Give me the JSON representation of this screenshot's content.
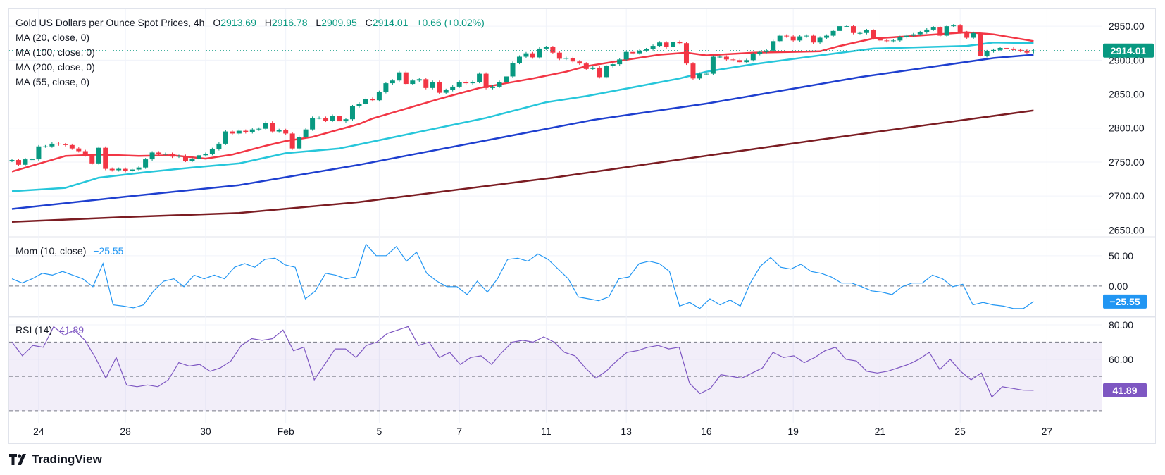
{
  "header": {
    "title": "Gold US Dollars per Ounce Spot Prices, 4h",
    "open_label": "O",
    "open": "2913.69",
    "high_label": "H",
    "high": "2916.78",
    "low_label": "L",
    "low": "2909.95",
    "close_label": "C",
    "close": "2914.01",
    "change": "+0.66 (+0.02%)"
  },
  "indicators": [
    "MA (20, close, 0)",
    "MA (100, close, 0)",
    "MA (200, close, 0)",
    "MA (55, close, 0)"
  ],
  "momentum": {
    "label": "Mom (10, close)",
    "value": "−25.55"
  },
  "rsi": {
    "label": "RSI (14)",
    "value": "41.89"
  },
  "current_price_label": "2914.01",
  "brand": "TradingView",
  "colors": {
    "up": "#089981",
    "down": "#f23645",
    "ma20": "#f23645",
    "ma55": "#26c6da",
    "ma100": "#1e3fcf",
    "ma200": "#7b1c22",
    "momentum": "#2196f3",
    "rsi": "#7e57c2"
  },
  "chart_data": [
    {
      "type": "candlestick",
      "pane": "price",
      "ylim": [
        2640,
        2975
      ],
      "yticks": [
        "2950.00",
        "2900.00",
        "2850.00",
        "2800.00",
        "2750.00",
        "2700.00",
        "2650.00"
      ],
      "ytick_values": [
        2950,
        2900,
        2850,
        2800,
        2750,
        2700,
        2650
      ],
      "xticks": [
        {
          "label": "24",
          "bar": 4
        },
        {
          "label": "28",
          "bar": 17
        },
        {
          "label": "30",
          "bar": 29
        },
        {
          "label": "Feb",
          "bar": 41
        },
        {
          "label": "5",
          "bar": 55
        },
        {
          "label": "7",
          "bar": 67
        },
        {
          "label": "11",
          "bar": 80
        },
        {
          "label": "13",
          "bar": 92
        },
        {
          "label": "16",
          "bar": 104
        },
        {
          "label": "19",
          "bar": 117
        },
        {
          "label": "21",
          "bar": 130
        },
        {
          "label": "25",
          "bar": 142
        },
        {
          "label": "27",
          "bar": 155
        }
      ],
      "first_open": 2752,
      "closes": [
        2753,
        2746,
        2754,
        2754,
        2773,
        2773,
        2777,
        2776,
        2775,
        2770,
        2766,
        2760,
        2748,
        2771,
        2740,
        2738,
        2740,
        2737,
        2739,
        2742,
        2754,
        2764,
        2762,
        2762,
        2758,
        2759,
        2752,
        2755,
        2760,
        2762,
        2769,
        2777,
        2795,
        2792,
        2796,
        2794,
        2798,
        2799,
        2808,
        2795,
        2797,
        2792,
        2770,
        2787,
        2798,
        2815,
        2815,
        2811,
        2818,
        2810,
        2813,
        2832,
        2836,
        2843,
        2841,
        2853,
        2866,
        2870,
        2882,
        2865,
        2870,
        2872,
        2859,
        2868,
        2852,
        2856,
        2861,
        2868,
        2866,
        2868,
        2880,
        2859,
        2861,
        2868,
        2876,
        2896,
        2905,
        2910,
        2904,
        2917,
        2919,
        2911,
        2902,
        2903,
        2898,
        2895,
        2887,
        2889,
        2875,
        2891,
        2894,
        2901,
        2912,
        2910,
        2914,
        2916,
        2921,
        2926,
        2919,
        2927,
        2925,
        2895,
        2873,
        2880,
        2880,
        2905,
        2905,
        2901,
        2900,
        2897,
        2900,
        2909,
        2912,
        2914,
        2928,
        2936,
        2935,
        2929,
        2935,
        2936,
        2926,
        2933,
        2936,
        2943,
        2950,
        2950,
        2940,
        2940,
        2944,
        2932,
        2929,
        2928,
        2929,
        2934,
        2936,
        2938,
        2941,
        2945,
        2948,
        2936,
        2950,
        2951,
        2941,
        2933,
        2940,
        2906,
        2913,
        2915,
        2918,
        2917,
        2915,
        2914,
        2911,
        2914.01
      ],
      "last_bar": {
        "open": 2913.69,
        "high": 2916.78,
        "low": 2909.95,
        "close": 2914.01
      },
      "series": [
        {
          "name": "MA (20, close, 0)",
          "color_key": "ma20",
          "points": [
            [
              0,
              2736
            ],
            [
              8,
              2759
            ],
            [
              13,
              2761
            ],
            [
              19,
              2759
            ],
            [
              24,
              2760
            ],
            [
              29,
              2755
            ],
            [
              33,
              2761
            ],
            [
              38,
              2774
            ],
            [
              41,
              2781
            ],
            [
              45,
              2787
            ],
            [
              52,
              2806
            ],
            [
              54,
              2814
            ],
            [
              64,
              2843
            ],
            [
              70,
              2859
            ],
            [
              78,
              2873
            ],
            [
              83,
              2883
            ],
            [
              86,
              2891
            ],
            [
              91,
              2899
            ],
            [
              97,
              2908
            ],
            [
              101,
              2911
            ],
            [
              104,
              2907
            ],
            [
              111,
              2911
            ],
            [
              121,
              2913
            ],
            [
              124,
              2921
            ],
            [
              129,
              2932
            ],
            [
              134,
              2935
            ],
            [
              143,
              2941
            ],
            [
              147,
              2938
            ],
            [
              153,
              2928
            ]
          ]
        },
        {
          "name": "MA (55, close, 0)",
          "color_key": "ma55",
          "points": [
            [
              0,
              2707
            ],
            [
              8,
              2712
            ],
            [
              13,
              2727
            ],
            [
              20,
              2735
            ],
            [
              27,
              2742
            ],
            [
              34,
              2748
            ],
            [
              41,
              2763
            ],
            [
              49,
              2770
            ],
            [
              52,
              2776
            ],
            [
              71,
              2815
            ],
            [
              80,
              2838
            ],
            [
              86,
              2847
            ],
            [
              93,
              2860
            ],
            [
              100,
              2873
            ],
            [
              104,
              2883
            ],
            [
              111,
              2894
            ],
            [
              121,
              2907
            ],
            [
              129,
              2917
            ],
            [
              143,
              2921
            ],
            [
              147,
              2926
            ],
            [
              153,
              2925
            ]
          ]
        },
        {
          "name": "MA (100, close, 0)",
          "color_key": "ma100",
          "points": [
            [
              0,
              2681
            ],
            [
              17,
              2699
            ],
            [
              34,
              2716
            ],
            [
              52,
              2746
            ],
            [
              87,
              2812
            ],
            [
              104,
              2836
            ],
            [
              127,
              2875
            ],
            [
              147,
              2903
            ],
            [
              153,
              2908
            ]
          ]
        },
        {
          "name": "MA (200, close, 0)",
          "color_key": "ma200",
          "points": [
            [
              0,
              2662
            ],
            [
              17,
              2669
            ],
            [
              34,
              2675
            ],
            [
              52,
              2691
            ],
            [
              81,
              2727
            ],
            [
              121,
              2783
            ],
            [
              153,
              2826
            ]
          ]
        }
      ]
    },
    {
      "type": "line",
      "pane": "momentum",
      "ylim": [
        -50,
        80
      ],
      "yticks": [
        "50.00",
        "0.00"
      ],
      "ytick_values": [
        50,
        0
      ],
      "zero_line": "dashed",
      "values": [
        12,
        5,
        12,
        21,
        18,
        24,
        18,
        12,
        -1,
        37,
        -31,
        -33,
        -36,
        -31,
        -8,
        8,
        12,
        -1,
        18,
        12,
        18,
        12,
        31,
        37,
        31,
        44,
        46,
        35,
        31,
        -21,
        -8,
        21,
        18,
        12,
        15,
        69,
        50,
        50,
        65,
        41,
        56,
        21,
        8,
        -1,
        -1,
        -14,
        8,
        -10,
        12,
        44,
        46,
        41,
        53,
        44,
        28,
        12,
        -18,
        -21,
        -24,
        -18,
        12,
        15,
        37,
        41,
        37,
        24,
        -33,
        -27,
        -37,
        -21,
        -31,
        -23,
        -33,
        5,
        33,
        47,
        31,
        28,
        36,
        24,
        21,
        15,
        5,
        5,
        -1,
        -8,
        -10,
        -14,
        -1,
        5,
        5,
        18,
        12,
        -1,
        3,
        -31,
        -27,
        -31,
        -33,
        -37,
        -37,
        -25.55
      ]
    },
    {
      "type": "line",
      "pane": "rsi",
      "ylim": [
        23,
        84.5
      ],
      "yticks": [
        "80.00",
        "60.00"
      ],
      "ytick_values": [
        80,
        60
      ],
      "bands": [
        70,
        50,
        30
      ],
      "values": [
        70,
        62,
        68,
        67,
        79,
        74,
        77,
        71,
        61,
        49,
        61,
        45,
        44,
        45,
        44,
        48,
        58,
        56,
        57,
        53,
        55,
        59,
        68,
        72,
        71,
        72,
        77,
        65,
        67,
        48,
        57,
        66,
        66,
        61,
        68,
        70,
        75,
        77,
        79,
        68,
        70,
        61,
        64,
        57,
        61,
        62,
        57,
        64,
        70,
        71,
        70,
        73,
        70,
        64,
        62,
        55,
        49,
        53,
        59,
        64,
        65,
        67,
        68,
        66,
        67,
        46,
        40,
        43,
        51,
        50,
        49,
        52,
        55,
        64,
        61,
        62,
        58,
        61,
        65,
        67,
        60,
        59,
        53,
        52,
        53,
        55,
        57,
        60,
        64,
        54,
        60,
        53,
        48,
        52,
        38,
        44,
        43,
        42,
        41.89
      ]
    }
  ]
}
